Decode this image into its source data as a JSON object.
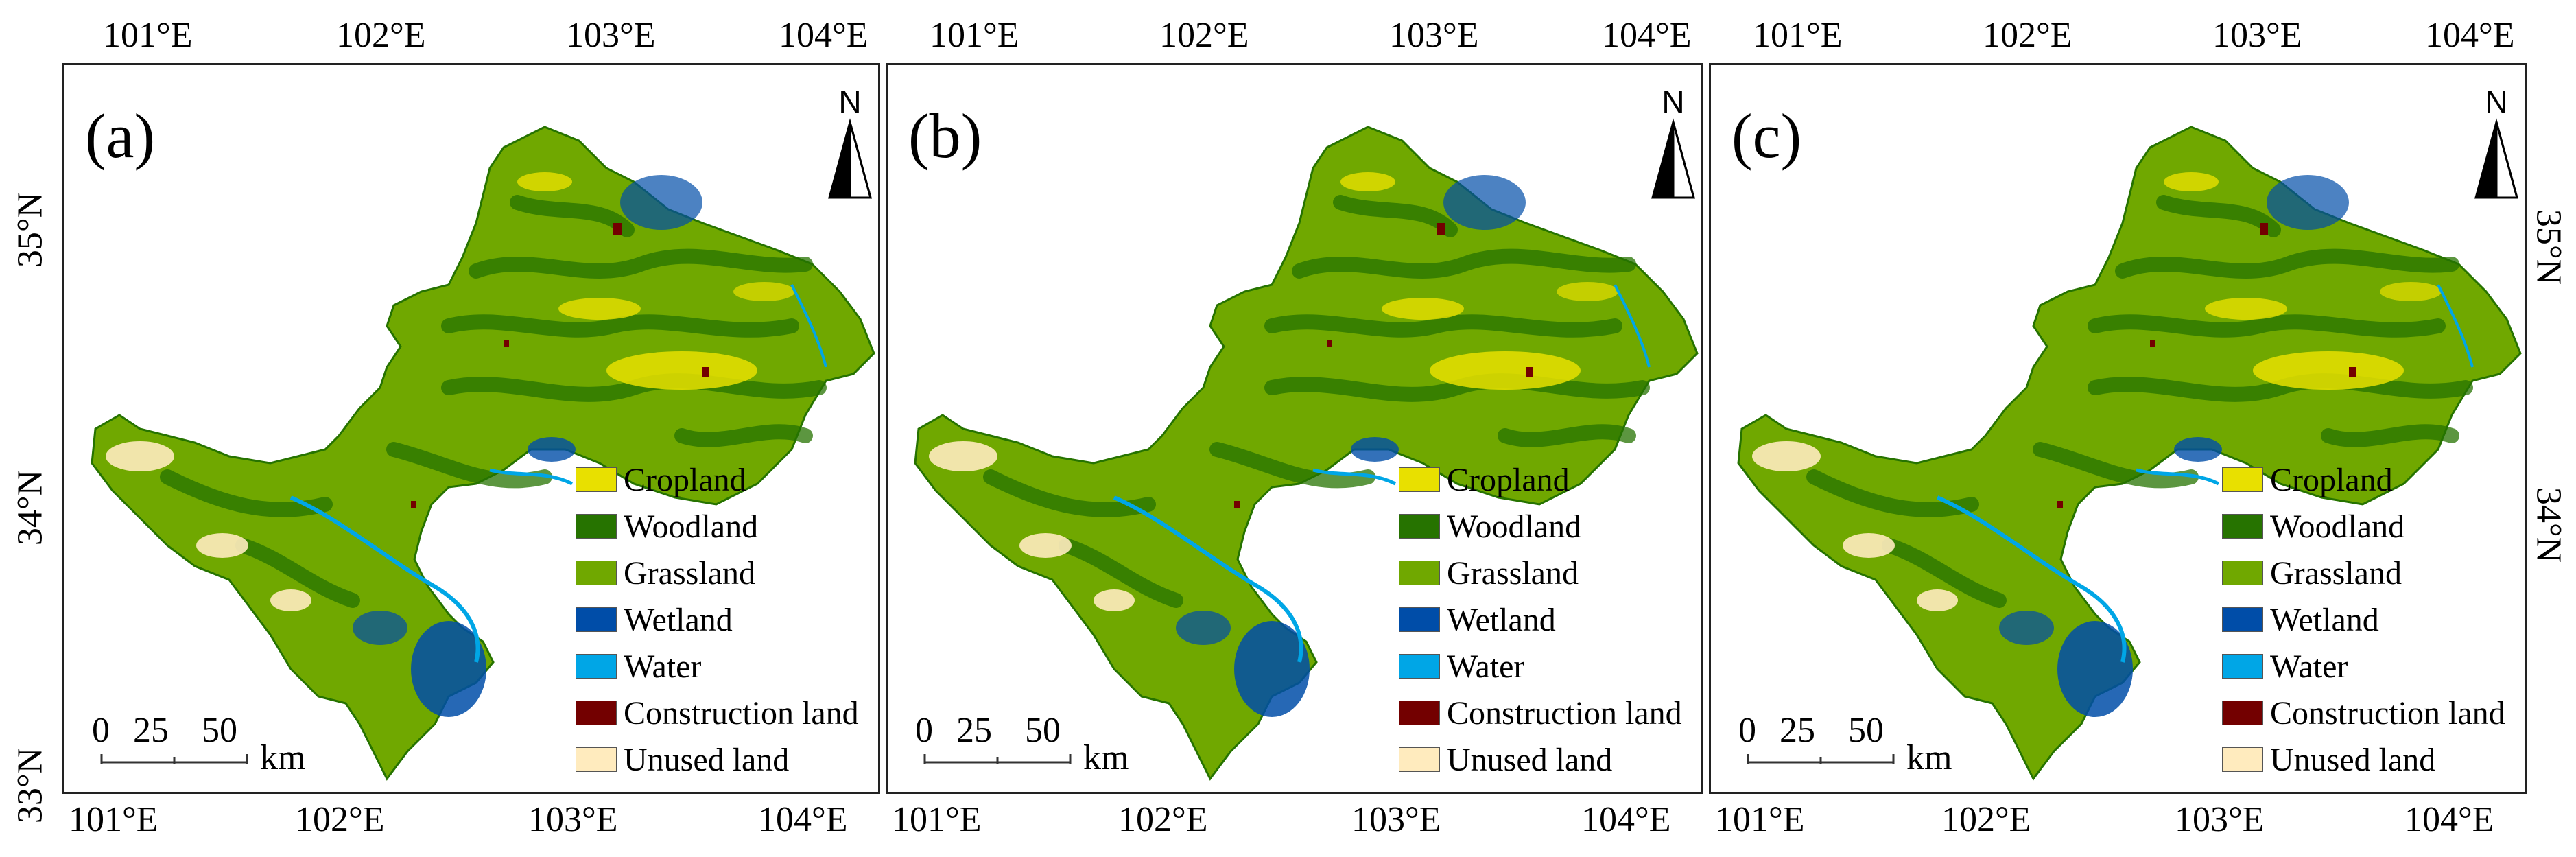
{
  "panels": [
    {
      "label": "(a)"
    },
    {
      "label": "(b)"
    },
    {
      "label": "(c)"
    }
  ],
  "north": "N",
  "legend": [
    {
      "label": "Cropland",
      "color": "#e8e000"
    },
    {
      "label": "Woodland",
      "color": "#267300"
    },
    {
      "label": "Grassland",
      "color": "#70a800"
    },
    {
      "label": "Wetland",
      "color": "#004da8"
    },
    {
      "label": "Water",
      "color": "#00a6e6"
    },
    {
      "label": "Construction land",
      "color": "#730000"
    },
    {
      "label": "Unused land",
      "color": "#ffebbe"
    }
  ],
  "scale_bar": {
    "ticks": [
      "0",
      "25",
      "50"
    ],
    "unit": "km"
  },
  "lon_ticks": [
    "101°E",
    "102°E",
    "103°E",
    "104°E"
  ],
  "lat_ticks": [
    "35°N",
    "34°N",
    "33°N"
  ]
}
